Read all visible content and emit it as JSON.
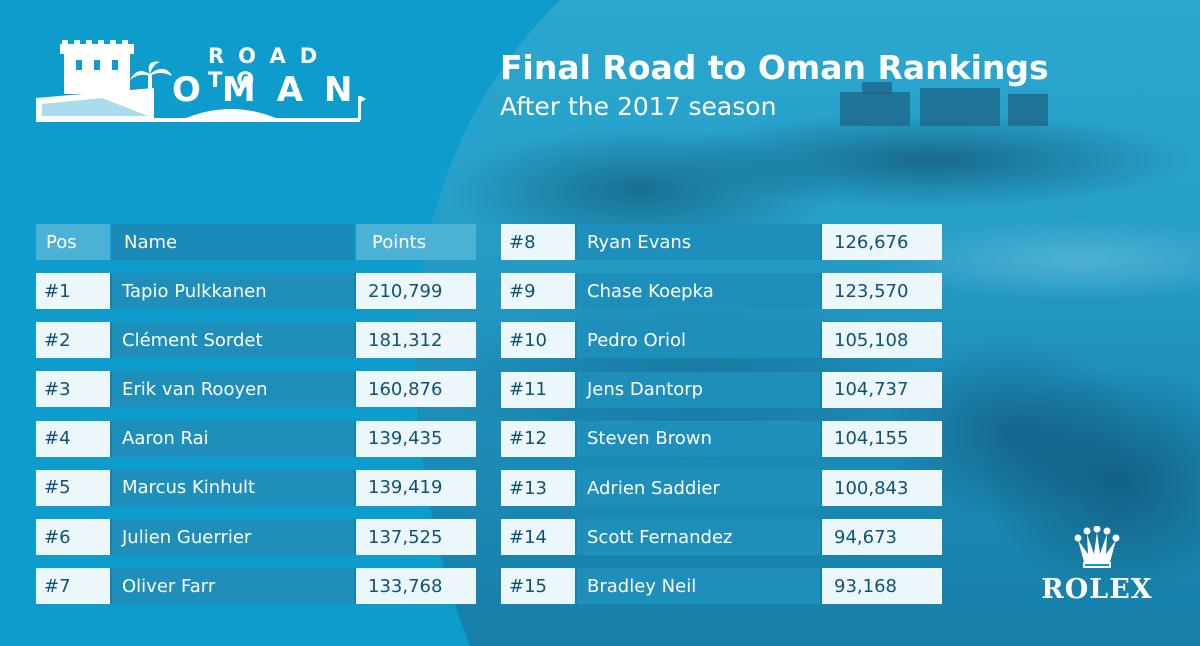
{
  "logo": {
    "line1": "ROAD TO",
    "line2": "OMAN"
  },
  "title": "Final Road to Oman Rankings",
  "subtitle": "After the 2017 season",
  "table": {
    "headers": {
      "pos": "Pos",
      "name": "Name",
      "points": "Points"
    },
    "left": [
      {
        "pos": "#1",
        "name": "Tapio Pulkkanen",
        "points": "210,799"
      },
      {
        "pos": "#2",
        "name": "Clément Sordet",
        "points": "181,312"
      },
      {
        "pos": "#3",
        "name": "Erik van Rooyen",
        "points": "160,876"
      },
      {
        "pos": "#4",
        "name": "Aaron Rai",
        "points": "139,435"
      },
      {
        "pos": "#5",
        "name": "Marcus Kinhult",
        "points": "139,419"
      },
      {
        "pos": "#6",
        "name": "Julien Guerrier",
        "points": "137,525"
      },
      {
        "pos": "#7",
        "name": "Oliver Farr",
        "points": "133,768"
      }
    ],
    "right": [
      {
        "pos": "#8",
        "name": "Ryan Evans",
        "points": "126,676"
      },
      {
        "pos": "#9",
        "name": "Chase Koepka",
        "points": "123,570"
      },
      {
        "pos": "#10",
        "name": "Pedro Oriol",
        "points": "105,108"
      },
      {
        "pos": "#11",
        "name": "Jens Dantorp",
        "points": "104,737"
      },
      {
        "pos": "#12",
        "name": "Steven Brown",
        "points": "104,155"
      },
      {
        "pos": "#13",
        "name": "Adrien Saddier",
        "points": "100,843"
      },
      {
        "pos": "#14",
        "name": "Scott Fernandez",
        "points": "94,673"
      },
      {
        "pos": "#15",
        "name": "Bradley Neil",
        "points": "93,168"
      }
    ]
  },
  "sponsor": {
    "name": "ROLEX",
    "icon": "crown-icon"
  },
  "colors": {
    "background": "#0d9ccb",
    "cell_light": "#ecf7fb",
    "text_dark": "#0f5274",
    "white": "#ffffff"
  }
}
